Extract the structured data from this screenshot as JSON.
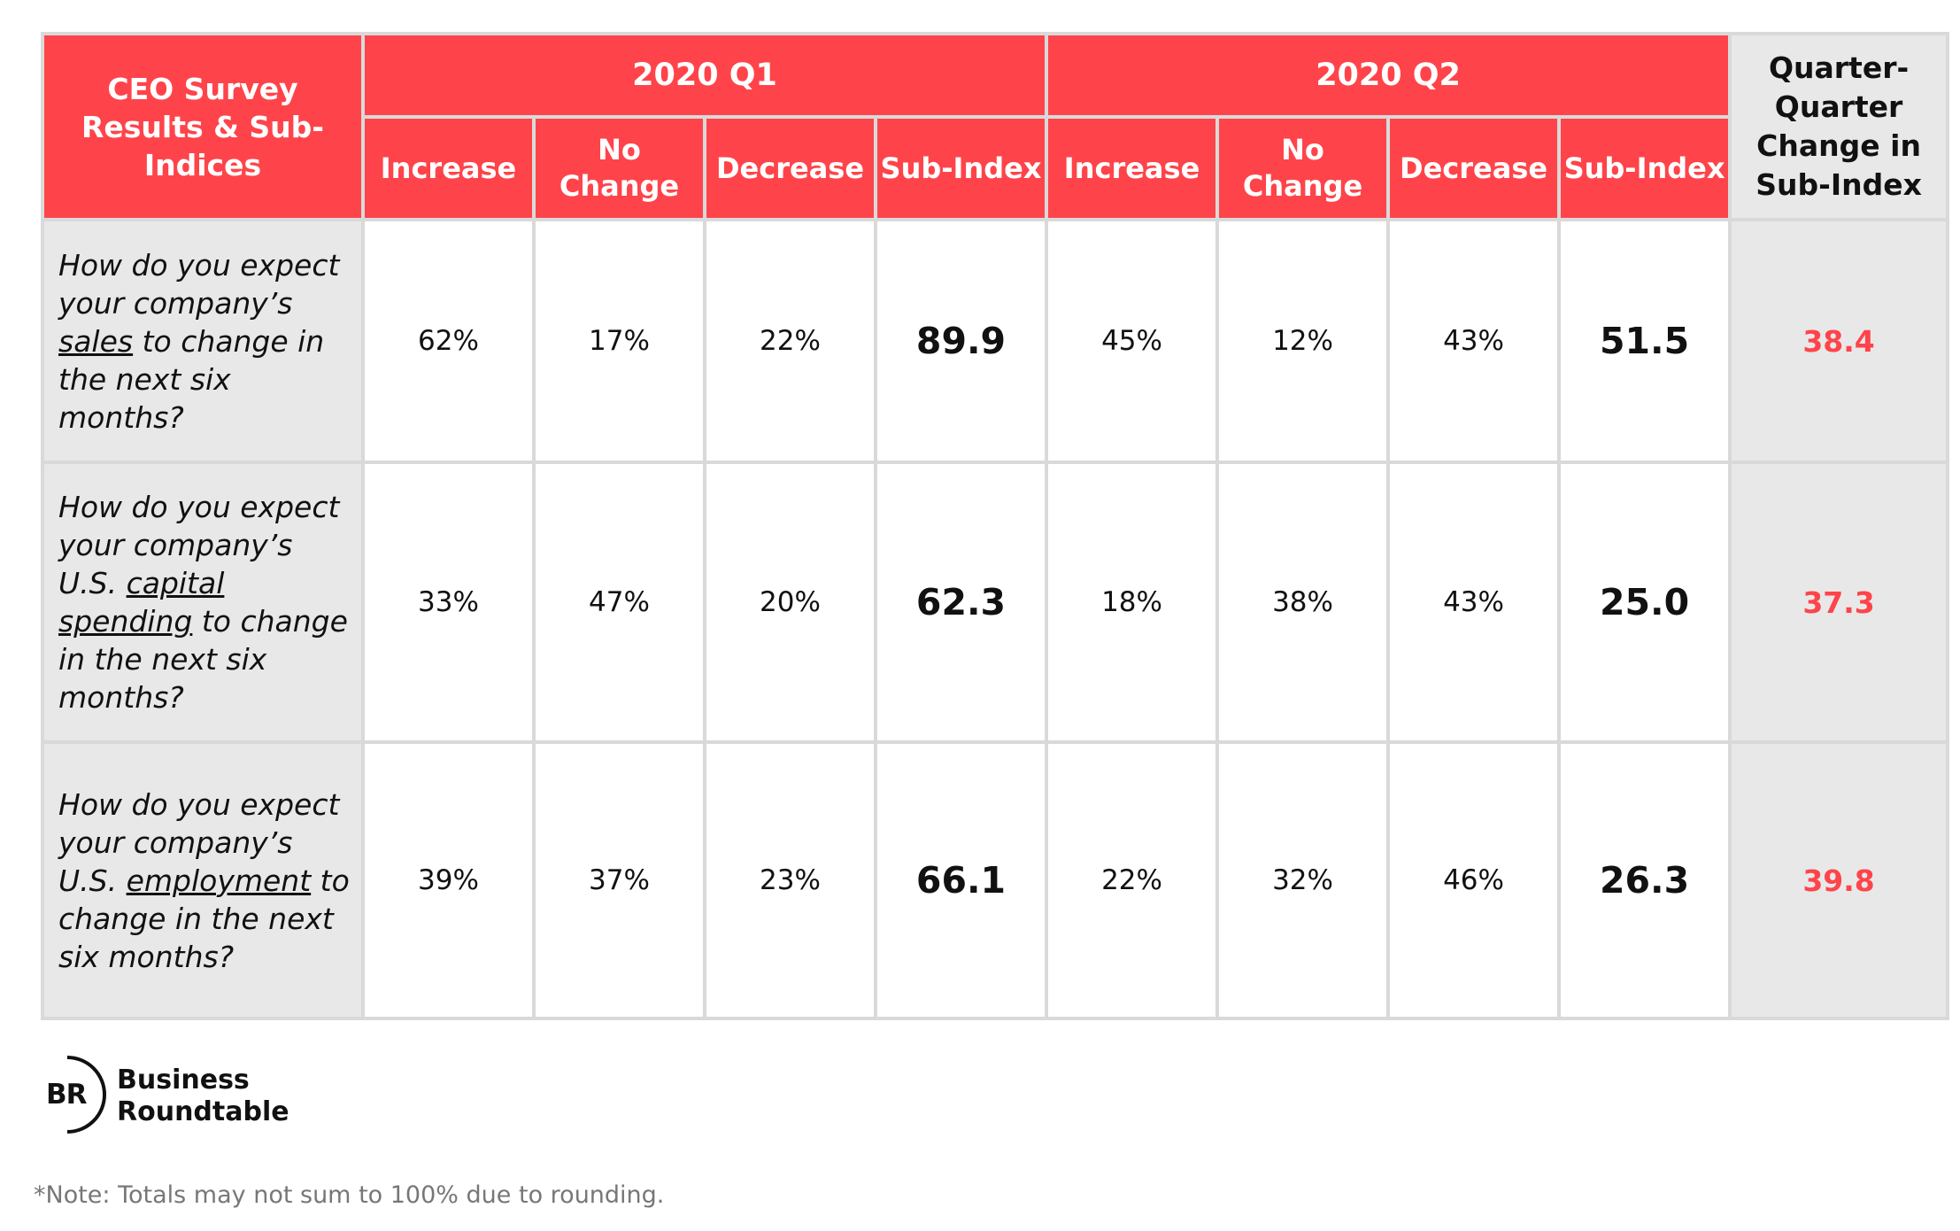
{
  "table": {
    "corner_header": "CEO Survey Results & Sub-Indices",
    "quarters": [
      "2020 Q1",
      "2020 Q2"
    ],
    "sub_headers": [
      "Increase",
      "No Change",
      "Decrease",
      "Sub-Index"
    ],
    "change_header": "Quarter-Quarter Change in Sub-Index",
    "rows": [
      {
        "q_pre": "How do you expect your company’s ",
        "q_topic": "sales",
        "q_post": " to change in the next six months?",
        "q1": [
          "62%",
          "17%",
          "22%",
          "89.9"
        ],
        "q2": [
          "45%",
          "12%",
          "43%",
          "51.5"
        ],
        "change": "38.4"
      },
      {
        "q_pre": "How do you expect your company’s U.S. ",
        "q_topic": "capital spending",
        "q_post": " to change in the next six months?",
        "q1": [
          "33%",
          "47%",
          "20%",
          "62.3"
        ],
        "q2": [
          "18%",
          "38%",
          "43%",
          "25.0"
        ],
        "change": "37.3"
      },
      {
        "q_pre": "How do you expect your company’s U.S. ",
        "q_topic": "employment",
        "q_post": " to change in the next six months?",
        "q1": [
          "39%",
          "37%",
          "23%",
          "66.1"
        ],
        "q2": [
          "22%",
          "32%",
          "46%",
          "26.3"
        ],
        "change": "39.8"
      }
    ]
  },
  "logo": {
    "mark": "BR",
    "line1": "Business",
    "line2": "Roundtable"
  },
  "note": "*Note: Totals may not sum to 100% due to rounding.",
  "colors": {
    "accent": "#fe444a",
    "gray_cell": "#e8e8e8",
    "border": "#d9d9d9"
  }
}
